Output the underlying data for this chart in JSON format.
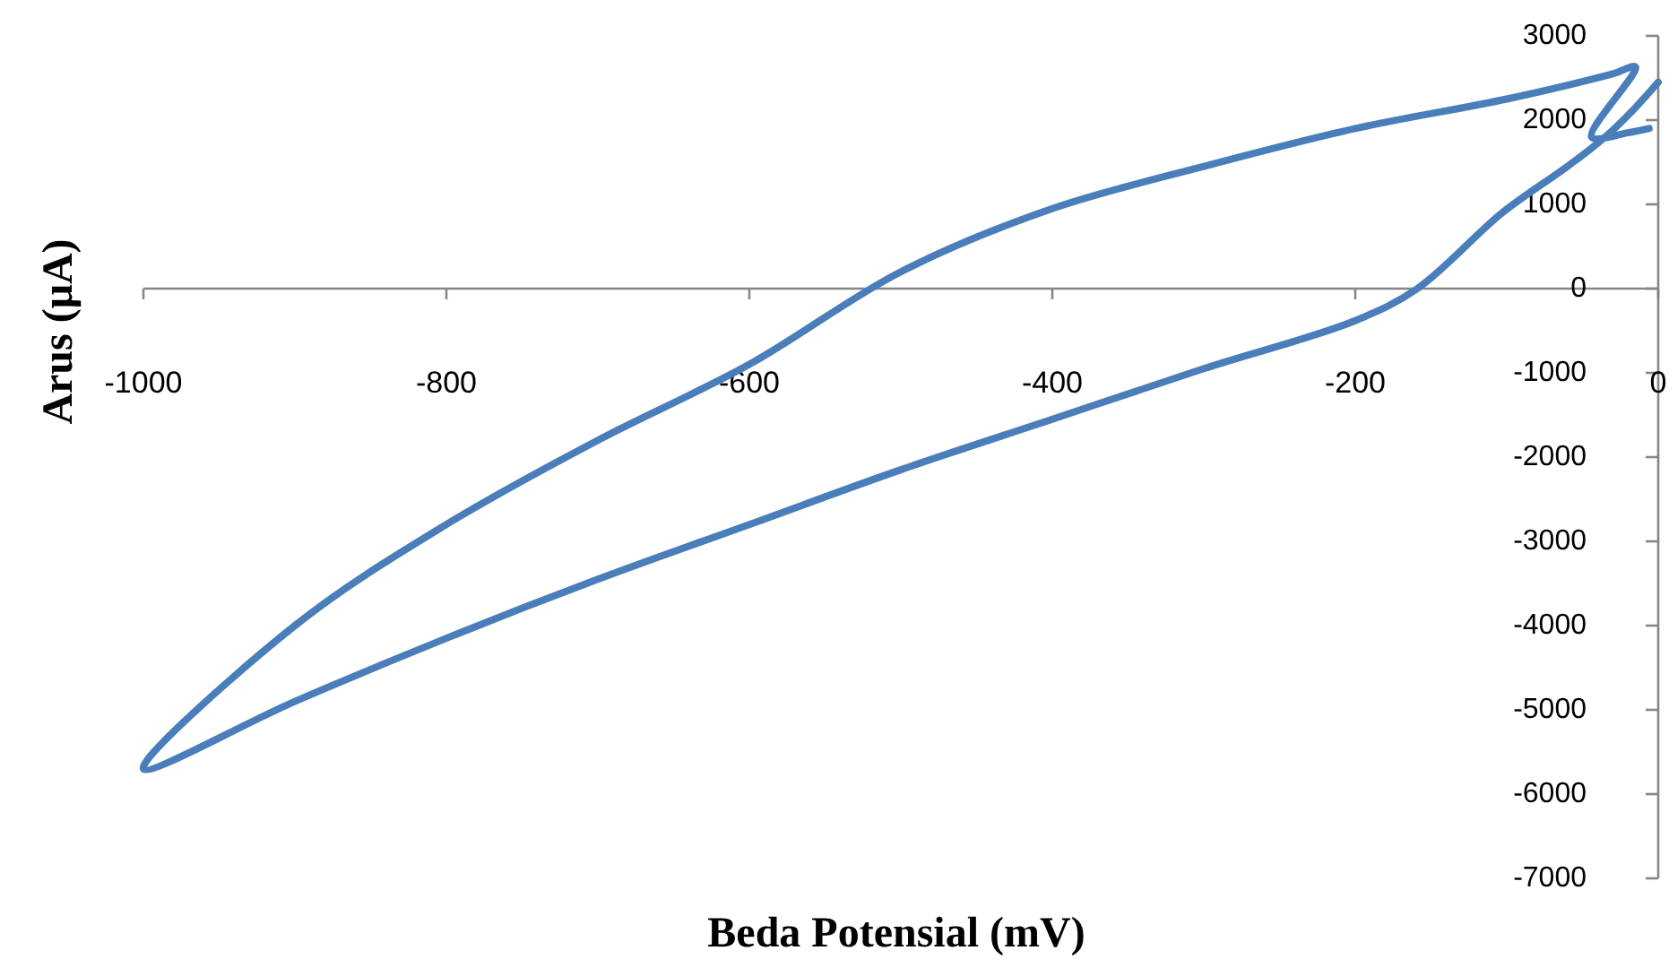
{
  "chart_data": {
    "type": "line",
    "xlabel": "Beda Potensial (mV)",
    "ylabel": "Arus (μA)",
    "xlim": [
      -1000,
      0
    ],
    "xticks": [
      -1000,
      -800,
      -600,
      -400,
      -200,
      0
    ],
    "ylim": [
      -7000,
      3000
    ],
    "yticks": [
      -7000,
      -6000,
      -5000,
      -4000,
      -3000,
      -2000,
      -1000,
      0,
      1000,
      2000,
      3000
    ],
    "marker": "none",
    "line_style": "solid",
    "series": [
      {
        "color": "#4a7ebb",
        "x": [
          0,
          -15,
          -35,
          -60,
          -103,
          -159,
          -200,
          -300,
          -400,
          -500,
          -600,
          -700,
          -800,
          -900,
          -1000,
          -900,
          -800,
          -700,
          -600,
          -500,
          -400,
          -300,
          -200,
          -100,
          -30,
          -15,
          -44,
          -20,
          -6
        ],
        "values": [
          2450,
          2150,
          1800,
          1450,
          900,
          0,
          -380,
          -950,
          -1550,
          -2150,
          -2800,
          -3450,
          -4150,
          -4900,
          -5700,
          -4000,
          -2800,
          -1800,
          -900,
          200,
          950,
          1450,
          1900,
          2250,
          2550,
          2630,
          1800,
          1850,
          1900
        ]
      }
    ]
  }
}
